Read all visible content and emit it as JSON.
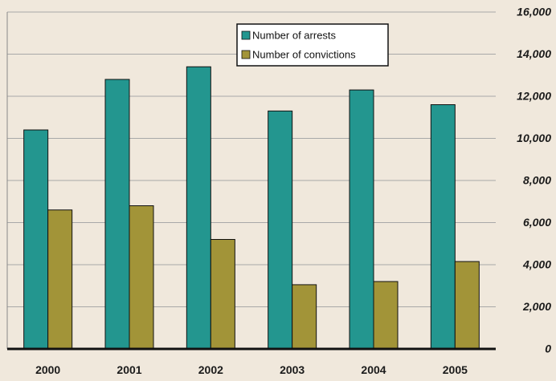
{
  "chart_data": {
    "type": "bar",
    "categories": [
      "2000",
      "2001",
      "2002",
      "2003",
      "2004",
      "2005"
    ],
    "series": [
      {
        "name": "Number of arrests",
        "values": [
          10400,
          12800,
          13400,
          11300,
          12300,
          11600
        ]
      },
      {
        "name": "Number of convictions",
        "values": [
          6600,
          6800,
          5200,
          3050,
          3200,
          4150
        ]
      }
    ],
    "ylim": [
      0,
      16000
    ],
    "yticks": [
      "0",
      "2,000",
      "4,000",
      "6,000",
      "8,000",
      "10,000",
      "12,000",
      "14,000",
      "16,000"
    ],
    "yaxis_side": "right",
    "grid": true,
    "legend_position": "top-right",
    "colors": {
      "background": "#f0e8dc",
      "grid": "#a8a8a8",
      "arrests": "#23968f",
      "convictions": "#a29438",
      "axis": "#111111"
    }
  }
}
